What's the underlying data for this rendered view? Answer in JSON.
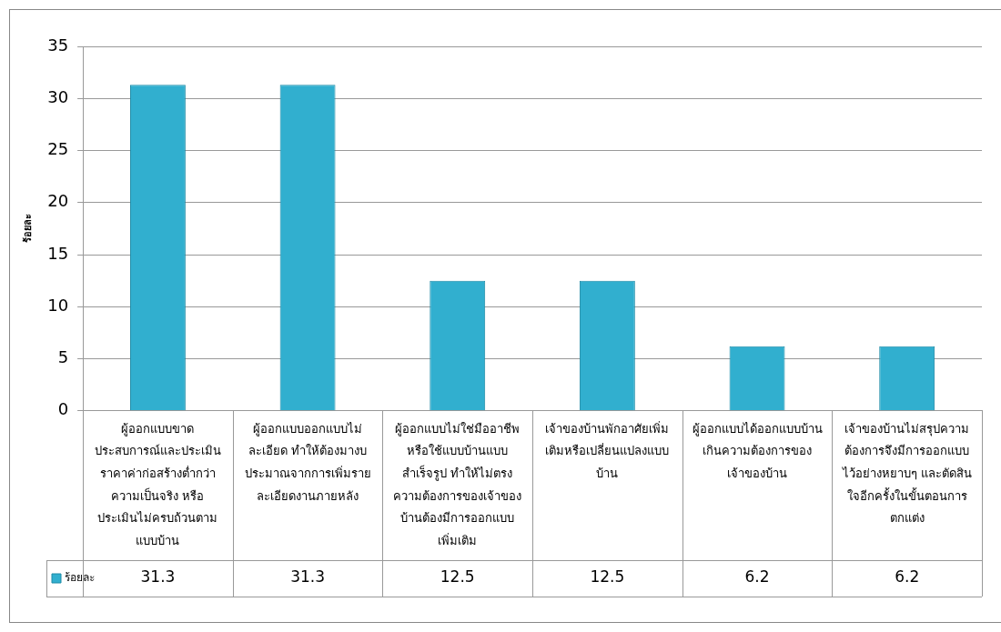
{
  "chart_data": {
    "type": "bar",
    "ylabel": "ร้อยละ",
    "categories": [
      "ผู้ออกแบบขาดประสบการณ์และประเมินราคาค่าก่อสร้างต่ำกว่าความเป็นจริง หรือประเมินไม่ครบถ้วนตามแบบบ้าน",
      "ผู้ออกแบบออกแบบไม่ละเอียด ทำให้ต้องมางบประมาณจากการเพิ่มรายละเอียดงานภายหลัง",
      "ผู้ออกแบบไม่ใช่มืออาชีพหรือใช้แบบบ้านแบบสำเร็จรูป ทำให้ไม่ตรงความต้องการของเจ้าของบ้านต้องมีการออกแบบเพิ่มเติม",
      "เจ้าของบ้านพักอาศัยเพิ่มเติมหรือเปลี่ยนแปลงแบบบ้าน",
      "ผู้ออกแบบได้ออกแบบบ้านเกินความต้องการของเจ้าของบ้าน",
      "เจ้าของบ้านไม่สรุปความต้องการจึงมีการออกแบบไว้อย่างหยาบๆ และตัดสินใจอีกครั้งในขั้นตอนการตกแต่ง"
    ],
    "series": [
      {
        "name": "ร้อยละ",
        "color": "#31afcf",
        "values": [
          31.3,
          31.3,
          12.5,
          12.5,
          6.2,
          6.2
        ]
      }
    ],
    "ylim": [
      0,
      35
    ],
    "yticks": [
      0,
      5,
      10,
      15,
      20,
      25,
      30,
      35
    ],
    "grid": "y",
    "legend": "bottom",
    "data_labels": true
  }
}
